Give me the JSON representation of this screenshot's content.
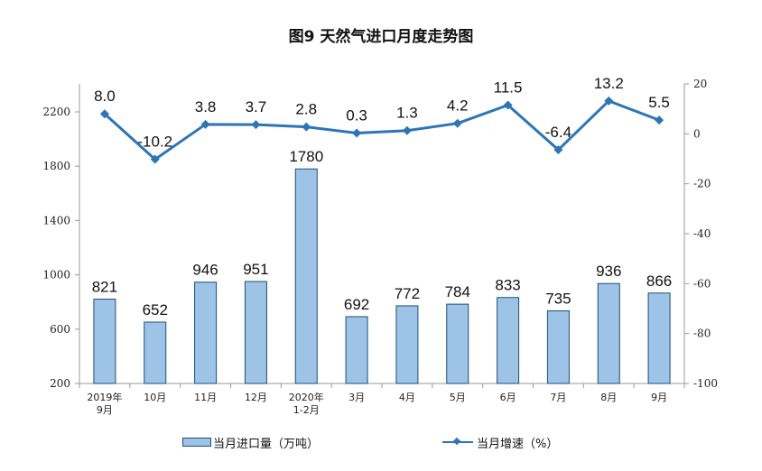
{
  "chart_data": {
    "type": "bar",
    "title": "图9  天然气进口月度走势图",
    "categories": [
      "2019年\n9月",
      "10月",
      "11月",
      "12月",
      "2020年\n1-2月",
      "3月",
      "4月",
      "5月",
      "6月",
      "7月",
      "8月",
      "9月"
    ],
    "series": [
      {
        "name": "当月进口量（万吨）",
        "type": "bar",
        "axis": "left",
        "color": "#9DC3E6",
        "values": [
          821,
          652,
          946,
          951,
          1780,
          692,
          772,
          784,
          833,
          735,
          936,
          866
        ]
      },
      {
        "name": "当月增速（%）",
        "type": "line",
        "axis": "right",
        "color": "#2E75B6",
        "values": [
          8.0,
          -10.2,
          3.8,
          3.7,
          2.8,
          0.3,
          1.3,
          4.2,
          11.5,
          -6.4,
          13.2,
          5.5
        ]
      }
    ],
    "left_axis": {
      "ylim": [
        200,
        2200
      ],
      "ticks": [
        200,
        600,
        1000,
        1400,
        1800,
        2200
      ]
    },
    "right_axis": {
      "ylim": [
        -100,
        20
      ],
      "ticks": [
        -100,
        -80,
        -60,
        -40,
        -20,
        0,
        20
      ]
    },
    "legend_position": "bottom"
  }
}
